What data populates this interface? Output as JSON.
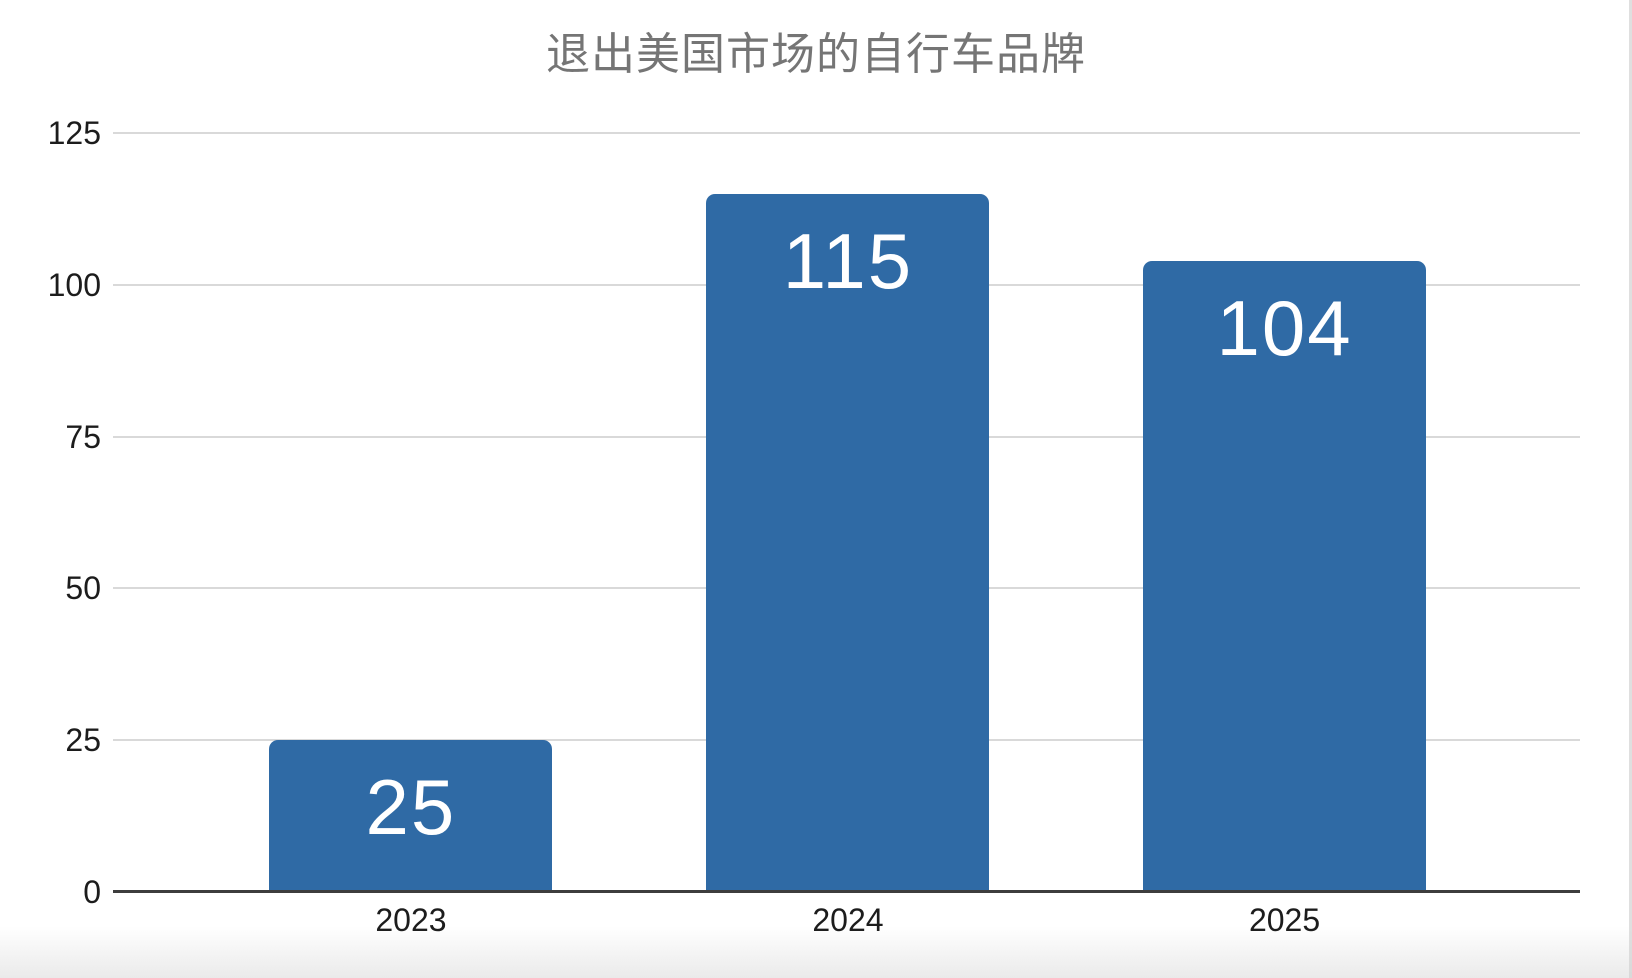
{
  "chart_data": {
    "type": "bar",
    "title": "退出美国市场的自行车品牌",
    "categories": [
      "2023",
      "2024",
      "2025"
    ],
    "values": [
      25,
      115,
      104
    ],
    "data_labels": [
      "25",
      "115",
      "104"
    ],
    "xlabel": "",
    "ylabel": "",
    "ylim": [
      0,
      125
    ],
    "yticks": [
      0,
      25,
      50,
      75,
      100,
      125
    ],
    "grid": true,
    "legend": "none",
    "colors": {
      "bar_fill": "#2f6aa5",
      "data_label_text": "#ffffff",
      "title_text": "#757575",
      "axis_label_text": "#1c1c1c",
      "gridline": "#d9d9d9",
      "baseline": "#3d3d3d",
      "background": "#ffffff"
    }
  }
}
